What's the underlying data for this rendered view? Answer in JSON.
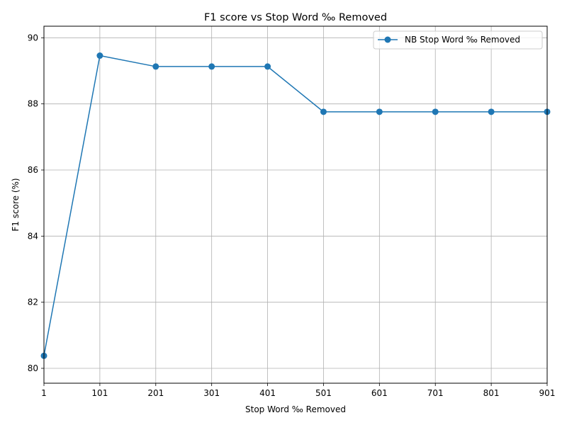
{
  "chart_data": {
    "type": "line",
    "title": "F1 score vs Stop Word ‰ Removed",
    "xlabel": "Stop Word ‰ Removed",
    "ylabel": "F1 score (%)",
    "x": [
      1,
      101,
      201,
      301,
      401,
      501,
      601,
      701,
      801,
      901
    ],
    "xticks": [
      "1",
      "101",
      "201",
      "301",
      "401",
      "501",
      "601",
      "701",
      "801",
      "901"
    ],
    "yticks": [
      80,
      82,
      84,
      86,
      88,
      90
    ],
    "xlim": [
      1,
      901
    ],
    "ylim": [
      79.55,
      90.35
    ],
    "grid": true,
    "legend_position": "top-right",
    "series": [
      {
        "name": "NB Stop Word ‰ Removed",
        "color": "#1f77b4",
        "marker": "circle",
        "values": [
          80.38,
          89.46,
          89.13,
          89.13,
          89.13,
          87.76,
          87.76,
          87.76,
          87.76,
          87.76
        ]
      }
    ]
  }
}
